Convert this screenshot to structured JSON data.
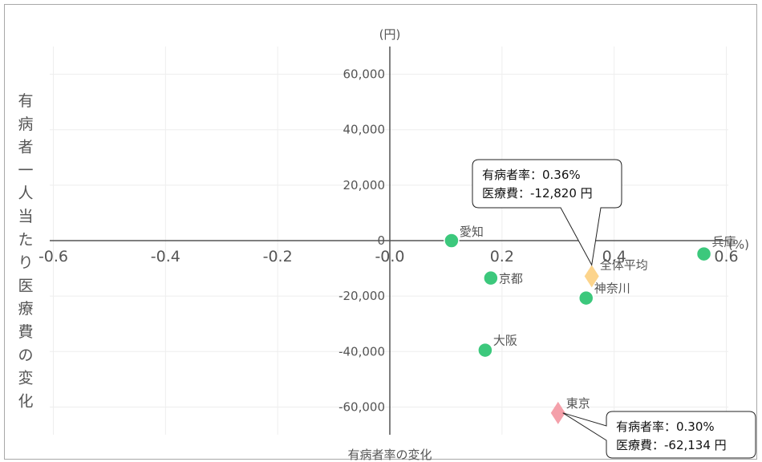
{
  "chart_data": {
    "type": "scatter",
    "title": "",
    "xlabel": "有病者率の変化",
    "ylabel": "有病者一人当たり医療費の変化",
    "x_unit": "(%)",
    "y_unit": "(円)",
    "xlim": [
      -0.6,
      0.6
    ],
    "ylim": [
      -70000,
      70000
    ],
    "x_ticks": [
      -0.6,
      -0.4,
      -0.2,
      0.0,
      0.2,
      0.4,
      0.6
    ],
    "x_tick_labels": [
      "-0.6",
      "-0.4",
      "-0.2",
      "-0.0",
      "0.2",
      "0.4",
      "0.6"
    ],
    "y_ticks": [
      -60000,
      -40000,
      -20000,
      0,
      20000,
      40000,
      60000
    ],
    "y_tick_labels": [
      "-60,000",
      "-40,000",
      "-20,000",
      "0",
      "20,000",
      "40,000",
      "60,000"
    ],
    "grid": true,
    "points": [
      {
        "label": "愛知",
        "x": 0.11,
        "y": 0,
        "marker": "circle",
        "color": "#3cc87c"
      },
      {
        "label": "京都",
        "x": 0.18,
        "y": -13500,
        "marker": "circle",
        "color": "#3cc87c"
      },
      {
        "label": "大阪",
        "x": 0.17,
        "y": -39500,
        "marker": "circle",
        "color": "#3cc87c"
      },
      {
        "label": "神奈川",
        "x": 0.35,
        "y": -20700,
        "marker": "circle",
        "color": "#3cc87c"
      },
      {
        "label": "兵庫",
        "x": 0.56,
        "y": -4800,
        "marker": "circle",
        "color": "#3cc87c"
      },
      {
        "label": "全体平均",
        "x": 0.36,
        "y": -12820,
        "marker": "diamond",
        "color": "#fcd48c"
      },
      {
        "label": "東京",
        "x": 0.3,
        "y": -62134,
        "marker": "diamond",
        "color": "#f4a0aa"
      }
    ],
    "callouts": [
      {
        "line1": "有病者率：0.36%",
        "line2": "医療費：-12,820 円",
        "target": "全体平均",
        "anchor": "above"
      },
      {
        "line1": "有病者率：0.30%",
        "line2": "医療費：-62,134 円",
        "target": "東京",
        "anchor": "below-right"
      }
    ]
  }
}
